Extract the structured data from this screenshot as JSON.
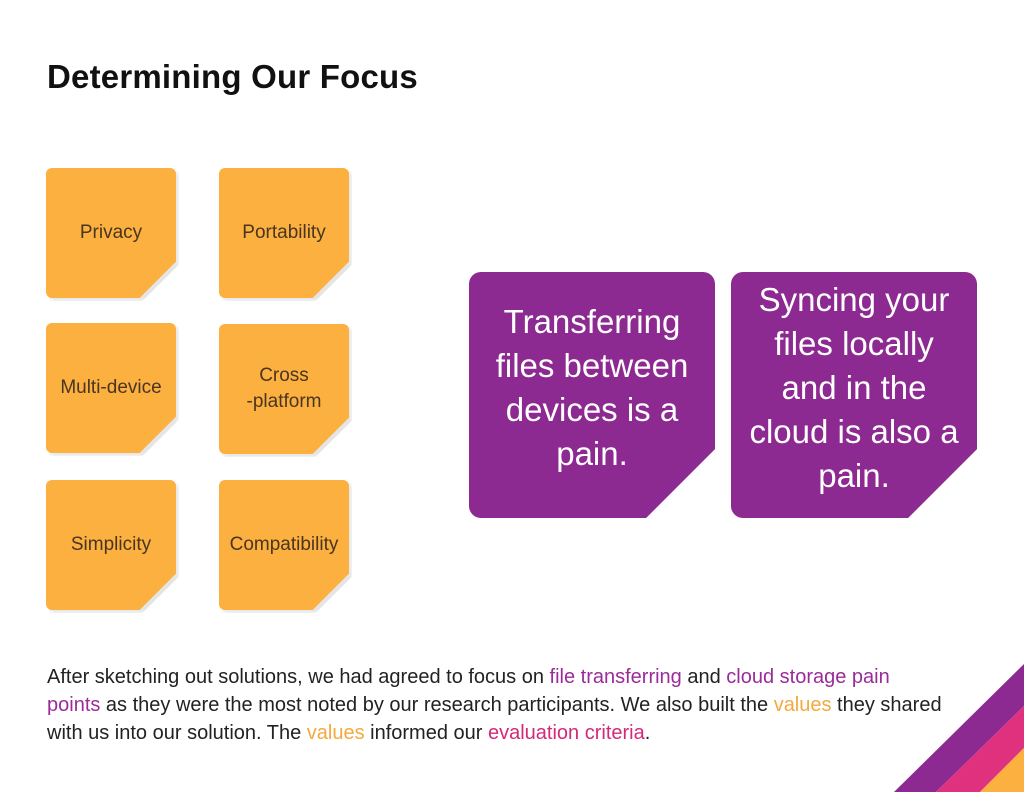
{
  "slide": {
    "title": "Determining Our Focus"
  },
  "values_notes": [
    {
      "label": "Privacy"
    },
    {
      "label": "Portability"
    },
    {
      "label": "Multi-device"
    },
    {
      "label": "Cross\n-platform"
    },
    {
      "label": "Simplicity"
    },
    {
      "label": "Compatibility"
    }
  ],
  "pain_points": [
    {
      "text": "Transferring files between devices is a pain."
    },
    {
      "text": "Syncing your files locally and in the cloud is also a pain."
    }
  ],
  "summary": {
    "part1": "After sketching out solutions, we had agreed to focus on ",
    "link1": "file transferring",
    "part2": " and ",
    "link2": "cloud storage pain points",
    "part3": " as they were the most noted by our research participants. We also built the ",
    "link3": "values",
    "part4": " they shared with us into our solution. The ",
    "link4": "values",
    "part5": " informed our ",
    "link5": "evaluation criteria",
    "part6": "."
  },
  "colors": {
    "sticky_orange": "#fbb040",
    "sticky_purple": "#8d2a91",
    "accent_pink": "#d4287a",
    "accent_orange": "#f4a93d"
  }
}
